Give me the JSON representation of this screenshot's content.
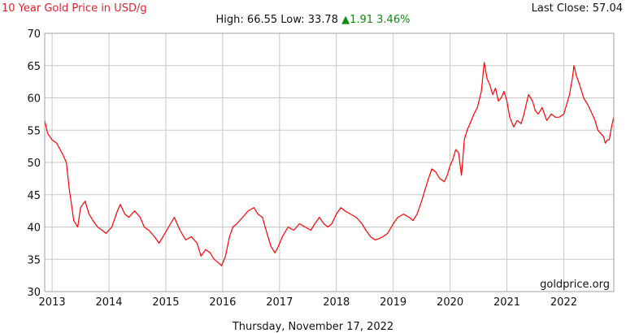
{
  "header": {
    "title": "10 Year Gold Price in USD/g",
    "last_close_label": "Last Close:",
    "last_close_value": "57.04",
    "high_label": "High:",
    "high_value": "66.55",
    "low_label": "Low:",
    "low_value": "33.78",
    "up_arrow_icon": "triangle-up-icon",
    "change_value": "1.91",
    "change_pct": "3.46%"
  },
  "watermark": "goldprice.org",
  "footer": {
    "date": "Thursday, November 17, 2022"
  },
  "colors": {
    "title": "#e0242b",
    "line": "#ff0000",
    "change": "#128a12",
    "grid": "#c8c8c8",
    "frame": "#a0a0a0"
  },
  "chart_data": {
    "type": "line",
    "title": "10 Year Gold Price in USD/g",
    "xlabel": "",
    "ylabel": "",
    "ylim": [
      30,
      70
    ],
    "xlim": [
      2012.87,
      2022.88
    ],
    "yticks": [
      "30",
      "35",
      "40",
      "45",
      "50",
      "55",
      "60",
      "65",
      "70"
    ],
    "xticks": [
      "2013",
      "2014",
      "2015",
      "2016",
      "2017",
      "2018",
      "2019",
      "2020",
      "2021",
      "2022"
    ],
    "grid": true,
    "legend": "none",
    "series": [
      {
        "x": [
          2012.87,
          2012.92,
          2013.0,
          2013.08,
          2013.2,
          2013.25,
          2013.3,
          2013.38,
          2013.45,
          2013.5,
          2013.58,
          2013.65,
          2013.72,
          2013.8,
          2013.88,
          2013.95,
          2014.05,
          2014.15,
          2014.2,
          2014.28,
          2014.35,
          2014.45,
          2014.55,
          2014.62,
          2014.7,
          2014.8,
          2014.88,
          2014.95,
          2015.05,
          2015.15,
          2015.25,
          2015.35,
          2015.45,
          2015.55,
          2015.62,
          2015.7,
          2015.78,
          2015.85,
          2015.92,
          2015.98,
          2016.05,
          2016.12,
          2016.18,
          2016.25,
          2016.35,
          2016.45,
          2016.55,
          2016.62,
          2016.7,
          2016.78,
          2016.85,
          2016.92,
          2016.98,
          2017.05,
          2017.15,
          2017.25,
          2017.35,
          2017.45,
          2017.55,
          2017.62,
          2017.7,
          2017.78,
          2017.85,
          2017.92,
          2018.0,
          2018.08,
          2018.15,
          2018.25,
          2018.35,
          2018.45,
          2018.52,
          2018.6,
          2018.68,
          2018.75,
          2018.82,
          2018.9,
          2019.0,
          2019.08,
          2019.18,
          2019.28,
          2019.35,
          2019.42,
          2019.5,
          2019.55,
          2019.62,
          2019.68,
          2019.75,
          2019.82,
          2019.9,
          2019.95,
          2020.0,
          2020.05,
          2020.1,
          2020.15,
          2020.2,
          2020.22,
          2020.25,
          2020.3,
          2020.35,
          2020.42,
          2020.48,
          2020.55,
          2020.6,
          2020.65,
          2020.7,
          2020.75,
          2020.8,
          2020.85,
          2020.9,
          2020.95,
          2021.0,
          2021.05,
          2021.12,
          2021.18,
          2021.25,
          2021.3,
          2021.38,
          2021.45,
          2021.5,
          2021.55,
          2021.62,
          2021.7,
          2021.78,
          2021.85,
          2021.92,
          2022.0,
          2022.05,
          2022.1,
          2022.15,
          2022.18,
          2022.22,
          2022.28,
          2022.35,
          2022.42,
          2022.5,
          2022.55,
          2022.6,
          2022.65,
          2022.7,
          2022.73,
          2022.77,
          2022.8,
          2022.84,
          2022.88
        ],
        "y": [
          56.5,
          54.5,
          53.5,
          53.0,
          51.0,
          50.0,
          46.0,
          41.0,
          40.0,
          43.0,
          44.0,
          42.0,
          41.0,
          40.0,
          39.5,
          39.0,
          40.0,
          42.5,
          43.5,
          42.0,
          41.5,
          42.5,
          41.5,
          40.0,
          39.5,
          38.5,
          37.5,
          38.5,
          40.0,
          41.5,
          39.5,
          38.0,
          38.5,
          37.5,
          35.5,
          36.5,
          36.0,
          35.0,
          34.5,
          34.0,
          35.5,
          38.5,
          40.0,
          40.5,
          41.5,
          42.5,
          43.0,
          42.0,
          41.5,
          39.0,
          37.0,
          36.0,
          37.0,
          38.5,
          40.0,
          39.5,
          40.5,
          40.0,
          39.5,
          40.5,
          41.5,
          40.5,
          40.0,
          40.5,
          42.0,
          43.0,
          42.5,
          42.0,
          41.5,
          40.5,
          39.5,
          38.5,
          38.0,
          38.2,
          38.5,
          39.0,
          40.5,
          41.5,
          42.0,
          41.5,
          41.0,
          42.0,
          44.0,
          45.5,
          47.5,
          49.0,
          48.5,
          47.5,
          47.0,
          48.0,
          49.5,
          50.5,
          52.0,
          51.5,
          48.0,
          50.0,
          53.5,
          55.0,
          56.0,
          57.5,
          58.5,
          61.0,
          65.5,
          63.0,
          62.0,
          60.5,
          61.5,
          59.5,
          60.0,
          61.0,
          59.5,
          57.0,
          55.5,
          56.5,
          56.0,
          57.5,
          60.5,
          59.5,
          58.0,
          57.5,
          58.5,
          56.5,
          57.5,
          57.0,
          57.0,
          57.5,
          59.0,
          60.5,
          63.0,
          65.0,
          63.5,
          62.0,
          60.0,
          59.0,
          57.5,
          56.5,
          55.0,
          54.5,
          54.0,
          53.0,
          53.5,
          53.5,
          55.5,
          57.04
        ]
      }
    ]
  }
}
